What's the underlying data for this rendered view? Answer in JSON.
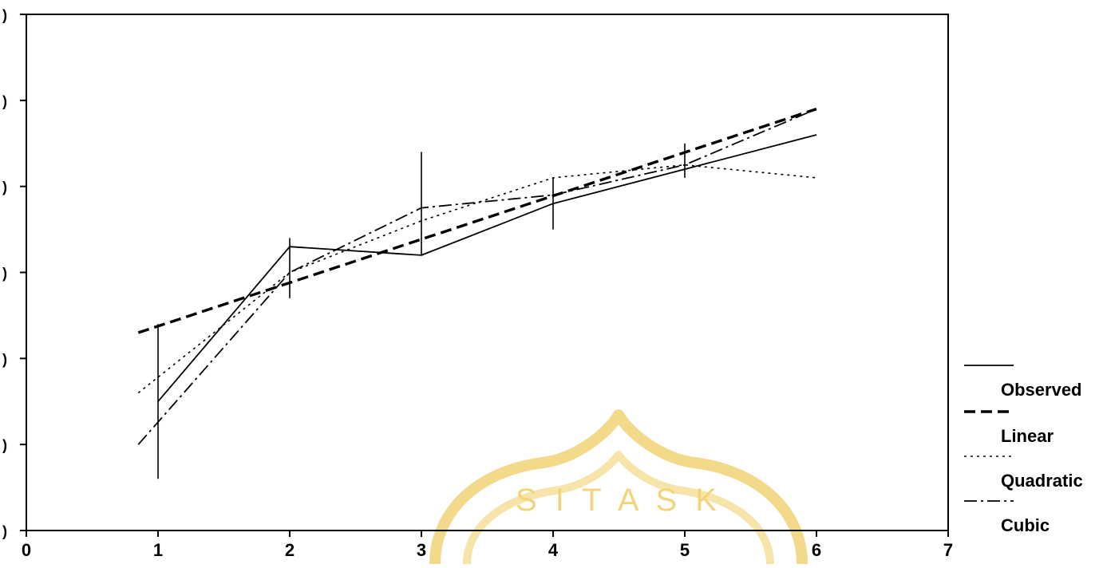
{
  "chart_data": {
    "type": "line",
    "title": "",
    "xlabel": "",
    "ylabel": "",
    "xlim": [
      0,
      7
    ],
    "ylim": [
      0,
      6
    ],
    "x_ticks": [
      "0",
      "1",
      "2",
      "3",
      "4",
      "5",
      "6",
      "7"
    ],
    "y_ticks": [
      ")",
      ")",
      ")",
      ")",
      ")",
      ")",
      ")"
    ],
    "grid": false,
    "legend_position": "right",
    "watermark_text": "S I T A S  K",
    "series": [
      {
        "name": "Observed",
        "style": "solid",
        "color": "#000000",
        "x": [
          1,
          2,
          3,
          4,
          5,
          6
        ],
        "y": [
          1.5,
          3.3,
          3.2,
          3.8,
          4.2,
          4.6
        ]
      },
      {
        "name": "Linear",
        "style": "dashed",
        "color": "#000000",
        "x": [
          0.85,
          6
        ],
        "y": [
          2.3,
          4.9
        ]
      },
      {
        "name": "Quadratic",
        "style": "dotted",
        "color": "#000000",
        "x": [
          0.85,
          2,
          3,
          4,
          5,
          6
        ],
        "y": [
          1.6,
          3.0,
          3.6,
          4.1,
          4.25,
          4.1
        ]
      },
      {
        "name": "Cubic",
        "style": "dashdot",
        "color": "#000000",
        "x": [
          0.85,
          2,
          3,
          4,
          5,
          6
        ],
        "y": [
          1.0,
          3.0,
          3.75,
          3.9,
          4.25,
          4.9
        ]
      }
    ],
    "error_bars": [
      {
        "x": 1,
        "low": 0.6,
        "high": 2.4
      },
      {
        "x": 2,
        "low": 2.7,
        "high": 3.4
      },
      {
        "x": 3,
        "low": 3.2,
        "high": 4.4
      },
      {
        "x": 4,
        "low": 3.5,
        "high": 4.1
      },
      {
        "x": 5,
        "low": 4.1,
        "high": 4.5
      }
    ]
  }
}
